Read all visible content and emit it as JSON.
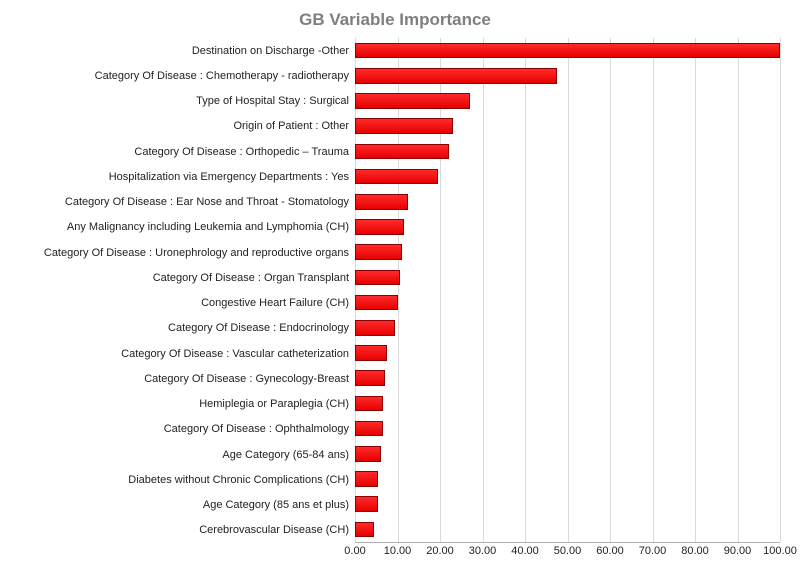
{
  "chart": {
    "type": "bar-horizontal",
    "title": "GB Variable Importance",
    "title_fontsize": 17,
    "title_color": "#7f7f7f",
    "background_color": "#ffffff",
    "grid_color": "#d9d9d9",
    "bar_fill": "#ff1a1a",
    "bar_border": "#8b0000",
    "label_fontsize": 11,
    "tick_fontsize": 11,
    "xlim": [
      0,
      100
    ],
    "xtick_step": 10,
    "xtick_labels": [
      "0.00",
      "10.00",
      "20.00",
      "30.00",
      "40.00",
      "50.00",
      "60.00",
      "70.00",
      "80.00",
      "90.00",
      "100.00"
    ],
    "categories": [
      "Destination on Discharge -Other",
      "Category Of Disease : Chemotherapy - radiotherapy",
      "Type of Hospital Stay : Surgical",
      "Origin of Patient : Other",
      "Category Of Disease : Orthopedic – Trauma",
      "Hospitalization via Emergency Departments : Yes",
      "Category Of Disease : Ear Nose and Throat - Stomatology",
      "Any Malignancy including Leukemia and Lymphomia (CH)",
      "Category Of Disease : Uronephrology and reproductive organs",
      "Category Of Disease : Organ Transplant",
      "Congestive Heart Failure (CH)",
      "Category Of Disease : Endocrinology",
      "Category Of Disease : Vascular catheterization",
      "Category Of Disease : Gynecology-Breast",
      "Hemiplegia or Paraplegia (CH)",
      "Category Of Disease : Ophthalmology",
      "Age Category (65-84 ans)",
      "Diabetes without Chronic Complications (CH)",
      "Age Category (85 ans et plus)",
      "Cerebrovascular Disease (CH)"
    ],
    "values": [
      100.0,
      47.5,
      27.0,
      23.0,
      22.0,
      19.5,
      12.5,
      11.5,
      11.0,
      10.5,
      10.0,
      9.5,
      7.5,
      7.0,
      6.5,
      6.5,
      6.0,
      5.5,
      5.5,
      4.5
    ]
  }
}
